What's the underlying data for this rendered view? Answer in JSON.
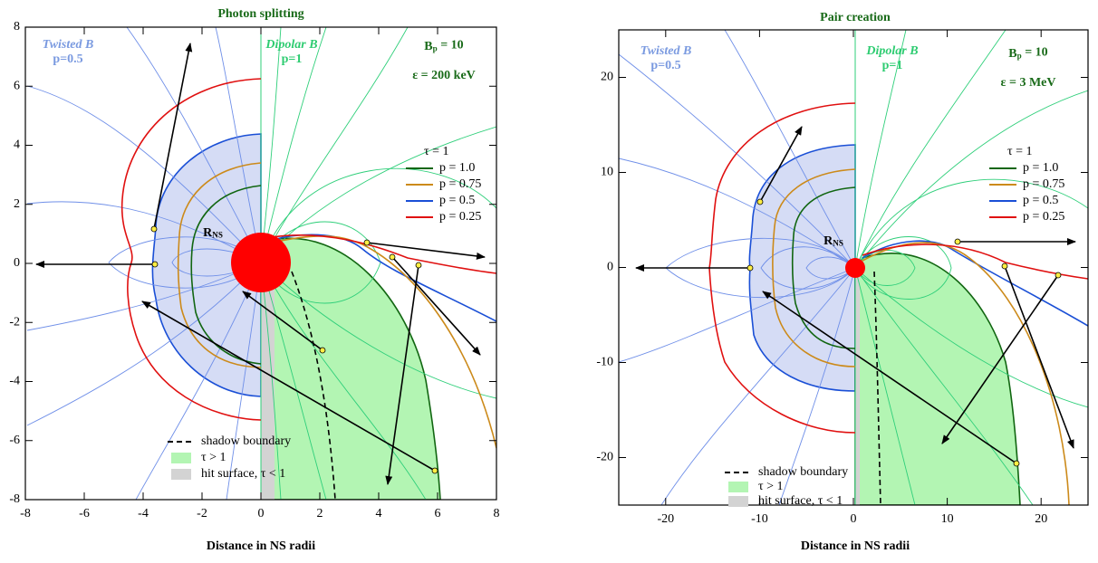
{
  "chart_data": [
    {
      "type": "diagram",
      "title": "Photon splitting",
      "xlabel": "Distance in NS radii",
      "xlim": [
        -8,
        8
      ],
      "ylim": [
        -8,
        8
      ],
      "xticks": [
        -8,
        -6,
        -4,
        -2,
        0,
        2,
        4,
        6,
        8
      ],
      "yticks": [
        -8,
        -6,
        -4,
        -2,
        0,
        2,
        4,
        6,
        8
      ],
      "annotations": {
        "twisted": "Twisted B",
        "twisted_p": "p=0.5",
        "dipolar": "Dipolar B",
        "dipolar_p": "p=1",
        "field": {
          "symbol": "B",
          "sub": "p",
          "rest": " = 10"
        },
        "energy": "ε = 200 keV",
        "star": {
          "symbol": "R",
          "sub": "NS"
        }
      },
      "legend_title": "τ = 1",
      "series": [
        {
          "name": "p = 1.0",
          "color": "#116611"
        },
        {
          "name": "p = 0.75",
          "color": "#cc8a1a"
        },
        {
          "name": "p = 0.5",
          "color": "#1a4fd6"
        },
        {
          "name": "p = 0.25",
          "color": "#e01010"
        }
      ],
      "shading_legend": [
        {
          "name": "shadow boundary",
          "color": "#000000"
        },
        {
          "name": "τ > 1",
          "color": "#b3f5b3"
        },
        {
          "name": "hit surface, τ < 1",
          "color": "#d3d3d3"
        }
      ]
    },
    {
      "type": "diagram",
      "title": "Pair creation",
      "xlabel": "Distance in NS radii",
      "xlim": [
        -25,
        25
      ],
      "ylim": [
        -25,
        25
      ],
      "xticks": [
        -20,
        -10,
        0,
        10,
        20
      ],
      "yticks": [
        -20,
        -10,
        0,
        10,
        20
      ],
      "annotations": {
        "twisted": "Twisted B",
        "twisted_p": "p=0.5",
        "dipolar": "Dipolar B",
        "dipolar_p": "p=1",
        "field": {
          "symbol": "B",
          "sub": "p",
          "rest": " = 10"
        },
        "energy": "ε = 3 MeV",
        "star": {
          "symbol": "R",
          "sub": "NS"
        }
      },
      "legend_title": "τ = 1",
      "series": [
        {
          "name": "p = 1.0",
          "color": "#116611"
        },
        {
          "name": "p = 0.75",
          "color": "#cc8a1a"
        },
        {
          "name": "p = 0.5",
          "color": "#1a4fd6"
        },
        {
          "name": "p = 0.25",
          "color": "#e01010"
        }
      ],
      "shading_legend": [
        {
          "name": "shadow boundary",
          "color": "#000000"
        },
        {
          "name": "τ > 1",
          "color": "#b3f5b3"
        },
        {
          "name": "hit surface, τ < 1",
          "color": "#d3d3d3"
        }
      ]
    }
  ]
}
